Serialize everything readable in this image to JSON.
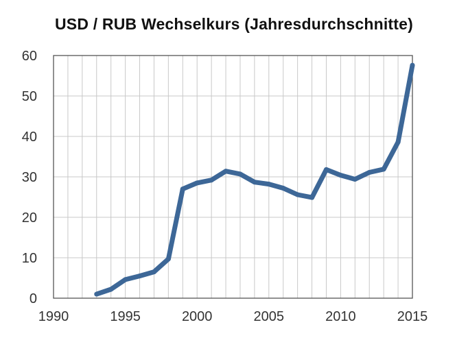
{
  "chart_data": {
    "type": "line",
    "title": "USD / RUB Wechselkurs (Jahresdurchschnitte)",
    "xlabel": "",
    "ylabel": "",
    "xlim": [
      1990,
      2015
    ],
    "ylim": [
      0,
      60
    ],
    "x_ticks": [
      1990,
      1995,
      2000,
      2005,
      2010,
      2015
    ],
    "y_ticks": [
      0,
      10,
      20,
      30,
      40,
      50,
      60
    ],
    "grid": {
      "vertical": true,
      "horizontal": true,
      "vertical_step": 1,
      "horizontal_step": 10
    },
    "legend": "none",
    "series": [
      {
        "color": "#3d6797",
        "x": [
          1993,
          1994,
          1995,
          1996,
          1997,
          1998,
          1999,
          2000,
          2001,
          2002,
          2003,
          2004,
          2005,
          2006,
          2007,
          2008,
          2009,
          2010,
          2011,
          2012,
          2013,
          2014,
          2015
        ],
        "y": [
          1.0,
          2.2,
          4.6,
          5.5,
          6.5,
          9.7,
          27.0,
          28.5,
          29.2,
          31.4,
          30.7,
          28.7,
          28.2,
          27.2,
          25.6,
          24.9,
          31.8,
          30.4,
          29.4,
          31.1,
          31.9,
          38.6,
          57.6
        ]
      }
    ]
  }
}
